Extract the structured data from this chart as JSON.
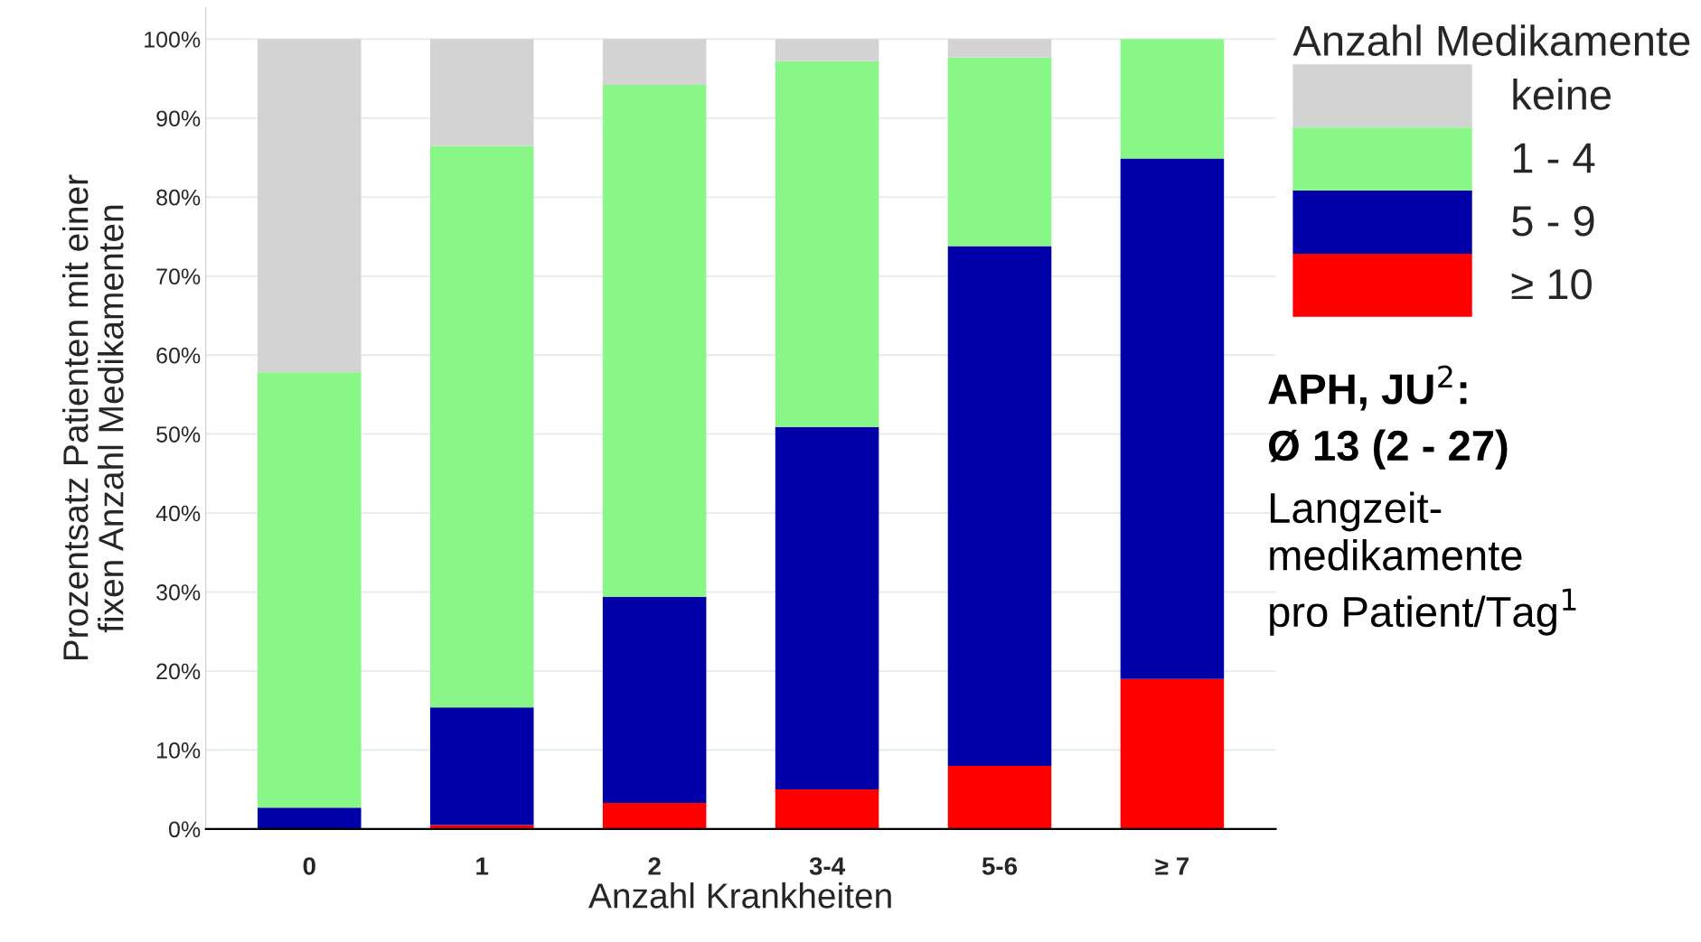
{
  "chart_data": {
    "type": "bar",
    "stacked": true,
    "xlabel": "Anzahl Krankheiten",
    "ylabel": "Prozentsatz Patienten mit einer\nfixen Anzahl Medikamenten",
    "legend_title": "Anzahl Medikamente",
    "legend": "top right",
    "grid": "y",
    "categories": [
      "0",
      "1",
      "2",
      "3-4",
      "5-6",
      "≥ 7"
    ],
    "ylim": [
      0,
      104
    ],
    "yticks": [
      {
        "value": 0,
        "label": "0%"
      },
      {
        "value": 10,
        "label": "10%"
      },
      {
        "value": 20,
        "label": "20%"
      },
      {
        "value": 30,
        "label": "30%"
      },
      {
        "value": 40,
        "label": "40%"
      },
      {
        "value": 50,
        "label": "50%"
      },
      {
        "value": 60,
        "label": "60%"
      },
      {
        "value": 70,
        "label": "70%"
      },
      {
        "value": 80,
        "label": "80%"
      },
      {
        "value": 90,
        "label": "90%"
      },
      {
        "value": 100,
        "label": "100%"
      }
    ],
    "series": [
      {
        "name": "≥ 10",
        "color": "#ff0000",
        "values": [
          0,
          0.5,
          3.3,
          5.0,
          8.0,
          19.0
        ]
      },
      {
        "name": "5 - 9",
        "color": "#0000a8",
        "values": [
          2.7,
          14.9,
          26.1,
          45.9,
          65.8,
          65.9
        ]
      },
      {
        "name": "1 - 4",
        "color": "#88f788",
        "values": [
          55.1,
          71.1,
          64.8,
          46.3,
          23.9,
          15.1
        ]
      },
      {
        "name": "keine",
        "color": "#d3d3d3",
        "values": [
          42.2,
          13.5,
          5.8,
          2.8,
          2.3,
          0
        ]
      }
    ],
    "annotations": [
      "APH, JU$^{2}$:",
      "Ø 13 (2 - 27)",
      "Langzeit-\nmedikamente\npro Patient/Tag$^{1}$"
    ]
  }
}
